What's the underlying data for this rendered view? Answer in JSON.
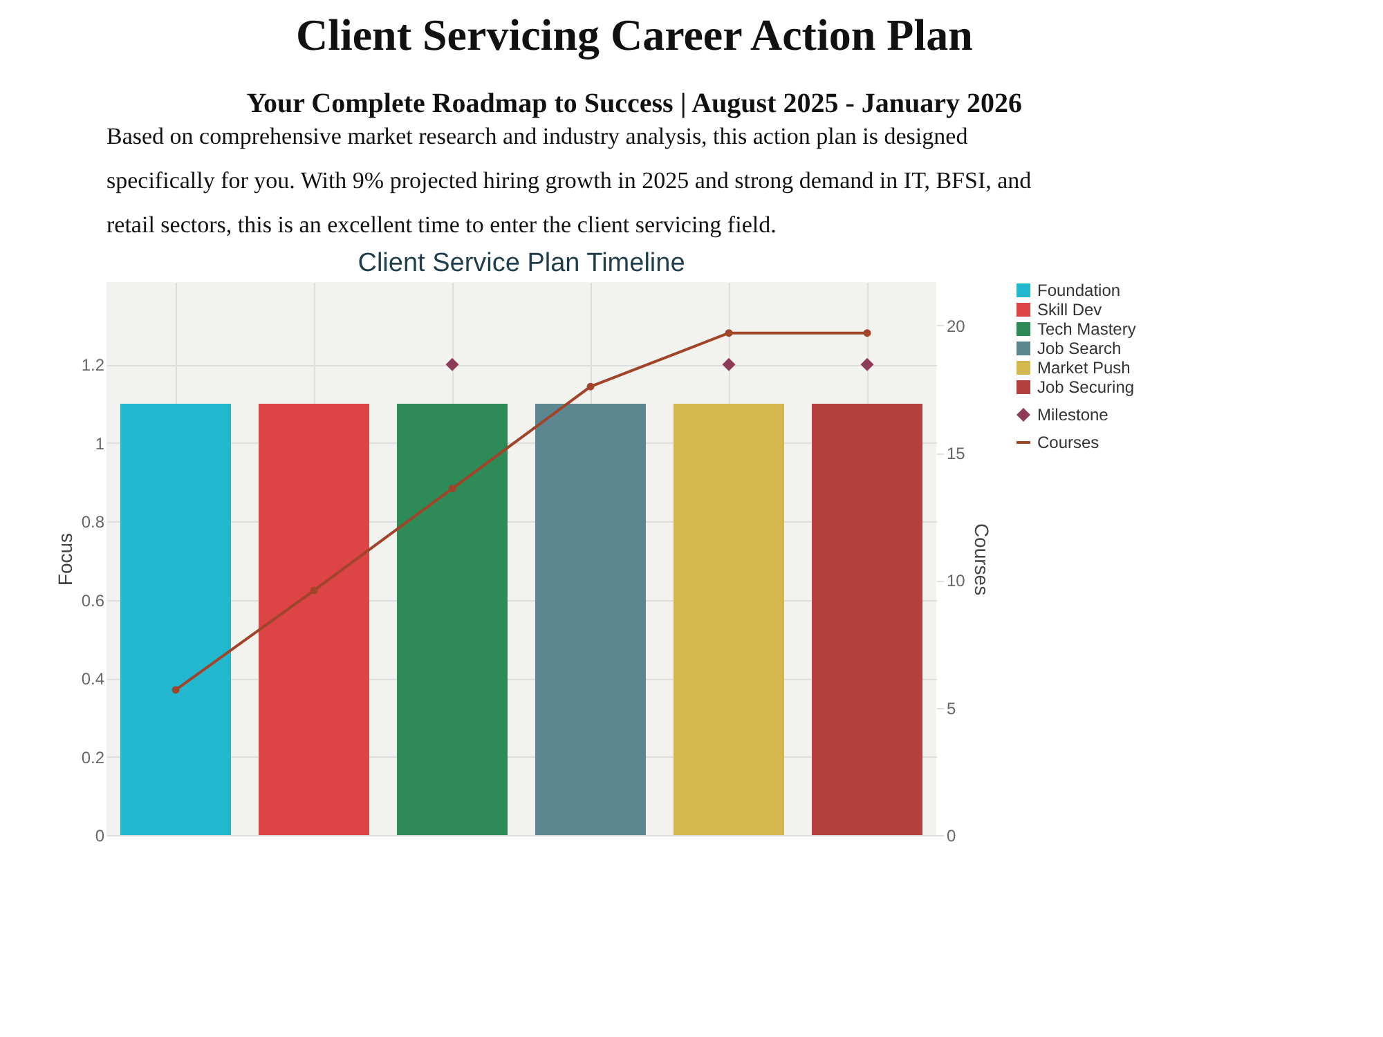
{
  "chart_data": {
    "type": "bar",
    "title": "Client Servicing Career Action Plan",
    "subtitle": "Your Complete Roadmap to Success | August 2025 - January 2026",
    "annotations": [
      "Based on comprehensive market research and industry analysis, this action plan is designed specifically for you. With 9% projected hiring growth in 2025 and strong demand in IT, BFSI, and retail sectors, this is an excellent time to enter the client servicing field.",
      "Client Service Plan Timeline"
    ],
    "categories": [
      null,
      null,
      null,
      null,
      null,
      null
    ],
    "series": [
      {
        "name": "Foundation",
        "color": "#22b8cf",
        "values": [
          1.1,
          null,
          null,
          null,
          null,
          null
        ]
      },
      {
        "name": "Skill Dev",
        "color": "#dc4446",
        "values": [
          null,
          1.1,
          null,
          null,
          null,
          null
        ]
      },
      {
        "name": "Tech Mastery",
        "color": "#2e8b57",
        "values": [
          null,
          null,
          1.1,
          null,
          null,
          null
        ]
      },
      {
        "name": "Job Search",
        "color": "#5c8790",
        "values": [
          null,
          null,
          null,
          1.1,
          null,
          null
        ]
      },
      {
        "name": "Market Push",
        "color": "#d4b84d",
        "values": [
          null,
          null,
          null,
          null,
          1.1,
          null
        ]
      },
      {
        "name": "Job Securing",
        "color": "#b5403d",
        "values": [
          null,
          null,
          null,
          null,
          null,
          1.1
        ]
      },
      {
        "name": "Courses",
        "type": "line",
        "axis": "y2",
        "marker": "circle",
        "line_style": "solid",
        "color": "#a0442a",
        "values": [
          5.7,
          9.6,
          13.6,
          17.6,
          19.7,
          19.7
        ]
      },
      {
        "name": "Milestone",
        "type": "scatter",
        "marker": "diamond",
        "color": "#8e3a59",
        "values": [
          null,
          null,
          1.2,
          null,
          1.2,
          1.2
        ]
      }
    ],
    "ylabel": "Focus",
    "y2label": "Courses",
    "ylim": [
      0,
      1.41
    ],
    "yticks": [
      0,
      0.2,
      0.4,
      0.6,
      0.8,
      1,
      1.2
    ],
    "y2lim": [
      0,
      21.7
    ],
    "y2ticks": [
      0,
      5,
      10,
      15,
      20
    ],
    "grid": true,
    "legend": "top right"
  }
}
